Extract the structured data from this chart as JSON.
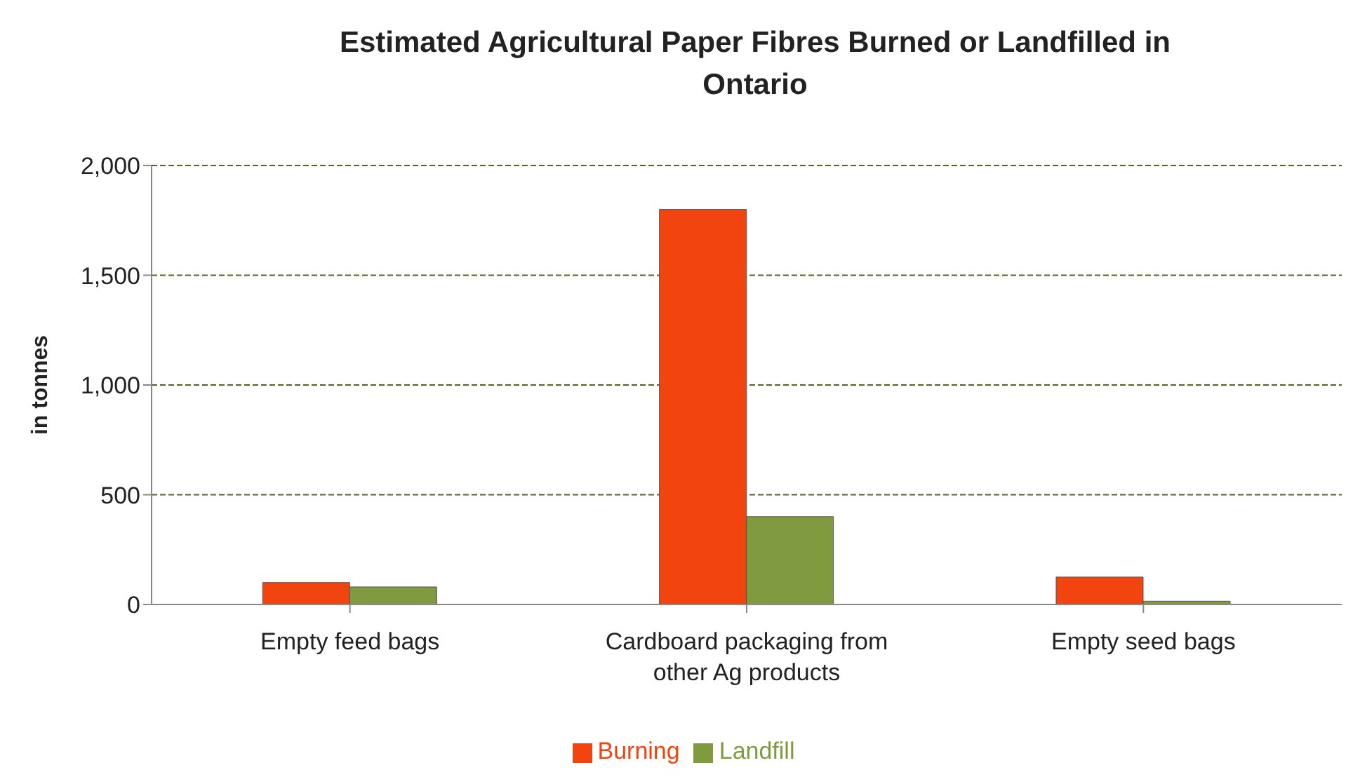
{
  "chart_data": {
    "type": "bar",
    "title": "Estimated Agricultural Paper Fibres Burned or Landfilled in Ontario",
    "ylabel": "in tonnes",
    "categories": [
      "Empty feed bags",
      "Cardboard packaging from other Ag products",
      "Empty seed bags"
    ],
    "series": [
      {
        "name": "Burning",
        "color": "#f2440f",
        "values": [
          100,
          1800,
          125
        ]
      },
      {
        "name": "Landfill",
        "color": "#7f9a3f",
        "values": [
          80,
          400,
          15
        ]
      }
    ],
    "ylim": [
      0,
      2000
    ],
    "yticks": [
      {
        "value": 0,
        "label": "0"
      },
      {
        "value": 500,
        "label": "500"
      },
      {
        "value": 1000,
        "label": "1,000"
      },
      {
        "value": 1500,
        "label": "1,500"
      },
      {
        "value": 2000,
        "label": "2,000"
      }
    ],
    "grid": "y",
    "legend": "bottom"
  }
}
